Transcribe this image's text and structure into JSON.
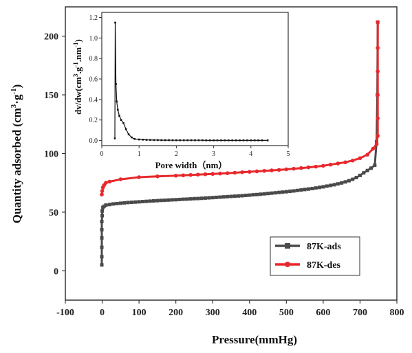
{
  "chart_data": [
    {
      "type": "line",
      "xlabel": "Pressure(mmHg)",
      "ylabel_main": "Quantity adsorbed (cm",
      "ylabel_sup1": "3",
      "ylabel_mid": "·g",
      "ylabel_sup2": "-1",
      "ylabel_end": ")",
      "xlim": [
        -100,
        800
      ],
      "ylim": [
        -25,
        225
      ],
      "xticks": [
        -100,
        0,
        100,
        200,
        300,
        400,
        500,
        600,
        700,
        800
      ],
      "yticks": [
        0,
        50,
        100,
        150,
        200
      ],
      "legend_position": "bottom-right",
      "series": [
        {
          "name": "87K-ads",
          "color": "#4a4a4a",
          "marker": "square",
          "points": [
            [
              -1,
              5
            ],
            [
              -1,
              12
            ],
            [
              -1,
              20
            ],
            [
              -1,
              28
            ],
            [
              -1,
              35
            ],
            [
              -1,
              42
            ],
            [
              0,
              47
            ],
            [
              0,
              51
            ],
            [
              2,
              54
            ],
            [
              5,
              55
            ],
            [
              10,
              56
            ],
            [
              20,
              56.5
            ],
            [
              30,
              57
            ],
            [
              40,
              57.3
            ],
            [
              50,
              57.6
            ],
            [
              60,
              57.9
            ],
            [
              70,
              58.2
            ],
            [
              80,
              58.4
            ],
            [
              90,
              58.6
            ],
            [
              100,
              58.8
            ],
            [
              110,
              59
            ],
            [
              120,
              59.2
            ],
            [
              130,
              59.4
            ],
            [
              140,
              59.6
            ],
            [
              150,
              59.8
            ],
            [
              160,
              60
            ],
            [
              170,
              60.1
            ],
            [
              180,
              60.3
            ],
            [
              190,
              60.5
            ],
            [
              200,
              60.6
            ],
            [
              210,
              60.8
            ],
            [
              220,
              61
            ],
            [
              230,
              61.1
            ],
            [
              240,
              61.3
            ],
            [
              250,
              61.5
            ],
            [
              260,
              61.6
            ],
            [
              270,
              61.8
            ],
            [
              280,
              62
            ],
            [
              290,
              62.2
            ],
            [
              300,
              62.4
            ],
            [
              310,
              62.6
            ],
            [
              320,
              62.8
            ],
            [
              330,
              63
            ],
            [
              340,
              63.2
            ],
            [
              350,
              63.4
            ],
            [
              360,
              63.6
            ],
            [
              370,
              63.8
            ],
            [
              380,
              64
            ],
            [
              390,
              64.3
            ],
            [
              400,
              64.5
            ],
            [
              410,
              64.8
            ],
            [
              420,
              65
            ],
            [
              430,
              65.3
            ],
            [
              440,
              65.6
            ],
            [
              450,
              65.9
            ],
            [
              460,
              66.2
            ],
            [
              470,
              66.5
            ],
            [
              480,
              66.8
            ],
            [
              490,
              67.1
            ],
            [
              500,
              67.4
            ],
            [
              510,
              67.8
            ],
            [
              520,
              68.1
            ],
            [
              530,
              68.5
            ],
            [
              540,
              68.9
            ],
            [
              550,
              69.3
            ],
            [
              560,
              69.7
            ],
            [
              570,
              70.1
            ],
            [
              580,
              70.6
            ],
            [
              590,
              71.1
            ],
            [
              600,
              71.6
            ],
            [
              610,
              72.2
            ],
            [
              620,
              72.8
            ],
            [
              630,
              73.4
            ],
            [
              640,
              74.1
            ],
            [
              650,
              74.9
            ],
            [
              660,
              75.8
            ],
            [
              670,
              76.8
            ],
            [
              680,
              78
            ],
            [
              690,
              79.5
            ],
            [
              700,
              81.3
            ],
            [
              710,
              83.5
            ],
            [
              720,
              85.5
            ],
            [
              730,
              87.5
            ],
            [
              740,
              90
            ],
            [
              745,
              110
            ],
            [
              747,
              150
            ],
            [
              748,
              212
            ]
          ]
        },
        {
          "name": "87K-des",
          "color": "#e8282c",
          "marker": "circle",
          "points": [
            [
              748,
              212
            ],
            [
              748,
              190
            ],
            [
              748,
              170
            ],
            [
              748,
              150
            ],
            [
              748,
              130
            ],
            [
              748,
              115
            ],
            [
              745,
              108
            ],
            [
              735,
              104
            ],
            [
              720,
              99
            ],
            [
              700,
              96
            ],
            [
              680,
              94
            ],
            [
              660,
              92.5
            ],
            [
              640,
              91.5
            ],
            [
              620,
              90.5
            ],
            [
              600,
              89.5
            ],
            [
              580,
              88.8
            ],
            [
              560,
              88.2
            ],
            [
              540,
              87.6
            ],
            [
              520,
              87
            ],
            [
              500,
              86.5
            ],
            [
              480,
              86
            ],
            [
              460,
              85.6
            ],
            [
              440,
              85.2
            ],
            [
              420,
              84.8
            ],
            [
              400,
              84.4
            ],
            [
              380,
              84
            ],
            [
              360,
              83.6
            ],
            [
              340,
              83.2
            ],
            [
              320,
              82.9
            ],
            [
              300,
              82.6
            ],
            [
              280,
              82.3
            ],
            [
              260,
              82
            ],
            [
              240,
              81.7
            ],
            [
              220,
              81.4
            ],
            [
              200,
              81.1
            ],
            [
              150,
              80.5
            ],
            [
              100,
              79.8
            ],
            [
              50,
              78
            ],
            [
              20,
              76
            ],
            [
              10,
              75
            ],
            [
              5,
              73
            ],
            [
              2,
              71
            ],
            [
              0,
              68
            ],
            [
              -1,
              65
            ]
          ]
        }
      ]
    },
    {
      "type": "line",
      "xlabel": "Pore width（nm）",
      "ylabel_main": "dv/dw(cm",
      "ylabel_sup1": "3",
      "ylabel_mid": ".g",
      "ylabel_sup2": "-1",
      "ylabel_mid2": ".nm",
      "ylabel_sup3": "-1",
      "ylabel_end": ")",
      "xlim": [
        0,
        5
      ],
      "ylim": [
        -0.05,
        1.25
      ],
      "xticks": [
        0,
        1,
        2,
        3,
        4,
        5
      ],
      "yticks": [
        0.0,
        0.2,
        0.4,
        0.6,
        0.8,
        1.0,
        1.2
      ],
      "ytick_labels": [
        "0.0",
        "0.2",
        "0.4",
        "0.6",
        "0.8",
        "1.0",
        "1.2"
      ],
      "series": [
        {
          "name": "",
          "color": "#111111",
          "marker": "square",
          "points": [
            [
              0.35,
              0.02
            ],
            [
              0.36,
              1.15
            ],
            [
              0.38,
              0.55
            ],
            [
              0.4,
              0.38
            ],
            [
              0.43,
              0.3
            ],
            [
              0.47,
              0.24
            ],
            [
              0.52,
              0.2
            ],
            [
              0.58,
              0.17
            ],
            [
              0.65,
              0.11
            ],
            [
              0.72,
              0.06
            ],
            [
              0.8,
              0.03
            ],
            [
              0.88,
              0.015
            ],
            [
              1.0,
              0.01
            ],
            [
              1.1,
              0.008
            ],
            [
              1.2,
              0.006
            ],
            [
              1.3,
              0.005
            ],
            [
              1.4,
              0.004
            ],
            [
              1.5,
              0.004
            ],
            [
              1.6,
              0.003
            ],
            [
              1.7,
              0.003
            ],
            [
              1.8,
              0.003
            ],
            [
              1.9,
              0.002
            ],
            [
              2.0,
              0.002
            ],
            [
              2.1,
              0.002
            ],
            [
              2.2,
              0.002
            ],
            [
              2.3,
              0.002
            ],
            [
              2.4,
              0.002
            ],
            [
              2.5,
              0.002
            ],
            [
              2.6,
              0.002
            ],
            [
              2.7,
              0.002
            ],
            [
              2.8,
              0.001
            ],
            [
              2.9,
              0.001
            ],
            [
              3.0,
              0.001
            ],
            [
              3.1,
              0.001
            ],
            [
              3.2,
              0.001
            ],
            [
              3.3,
              0.001
            ],
            [
              3.4,
              0.001
            ],
            [
              3.5,
              0.001
            ],
            [
              3.6,
              0.001
            ],
            [
              3.7,
              0.001
            ],
            [
              3.8,
              0.001
            ],
            [
              3.9,
              0.001
            ],
            [
              4.0,
              0.001
            ],
            [
              4.1,
              0.001
            ],
            [
              4.2,
              0.001
            ],
            [
              4.3,
              0.001
            ],
            [
              4.45,
              0.001
            ]
          ]
        }
      ]
    }
  ]
}
